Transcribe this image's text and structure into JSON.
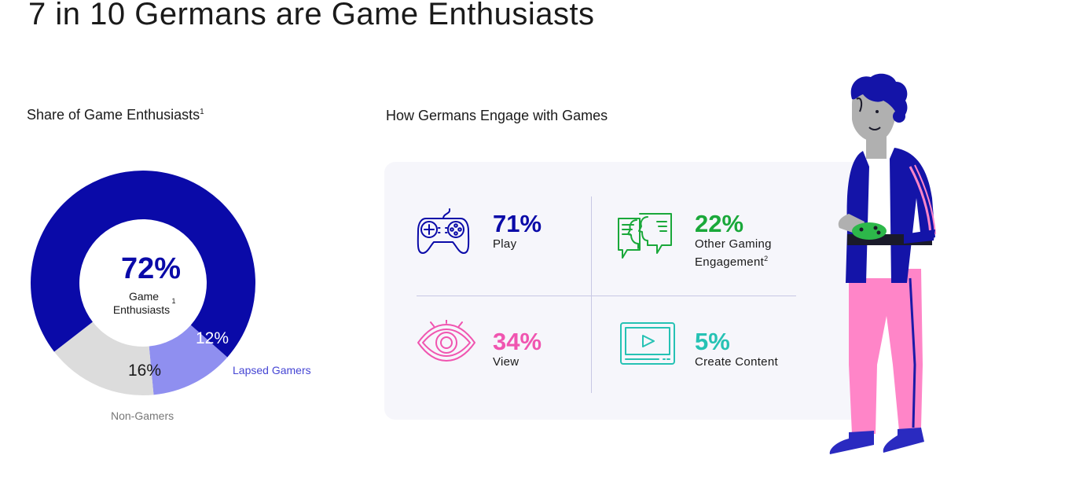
{
  "page": {
    "title": "7 in 10 Germans are Game Enthusiasts",
    "left_heading": "Share of Game Enthusiasts",
    "left_heading_sup": "1",
    "right_heading": "How Germans Engage with Games"
  },
  "chart_data": {
    "type": "pie",
    "variant": "donut",
    "title": "Share of Game Enthusiasts",
    "slices": [
      {
        "label": "Game Enthusiasts",
        "value": 72,
        "display": "72%",
        "color": "#0a0aa8"
      },
      {
        "label": "Lapsed Gamers",
        "value": 12,
        "display": "12%",
        "color": "#8f8ff0"
      },
      {
        "label": "Non-Gamers",
        "value": 16,
        "display": "16%",
        "color": "#dcdcdc"
      }
    ],
    "center": {
      "value": "72%",
      "label_line1": "Game",
      "label_line2": "Enthusiasts",
      "sup": "1"
    },
    "outside_labels": {
      "lapsed": "Lapsed Gamers",
      "non_gamers": "Non-Gamers"
    },
    "label_colors": {
      "lapsed": "#4646d4",
      "non_gamers": "#777777"
    }
  },
  "engagement": {
    "items": [
      {
        "pct": "71%",
        "label": "Play",
        "color": "#0a0aa8",
        "icon": "gamepad-icon"
      },
      {
        "pct": "22%",
        "label": "Other Gaming",
        "label2": "Engagement",
        "sup": "2",
        "color": "#1aa83a",
        "icon": "conversation-icon"
      },
      {
        "pct": "34%",
        "label": "View",
        "color": "#f055b0",
        "icon": "eye-icon"
      },
      {
        "pct": "5%",
        "label": "Create Content",
        "color": "#26c2b4",
        "icon": "video-screen-icon"
      }
    ]
  }
}
